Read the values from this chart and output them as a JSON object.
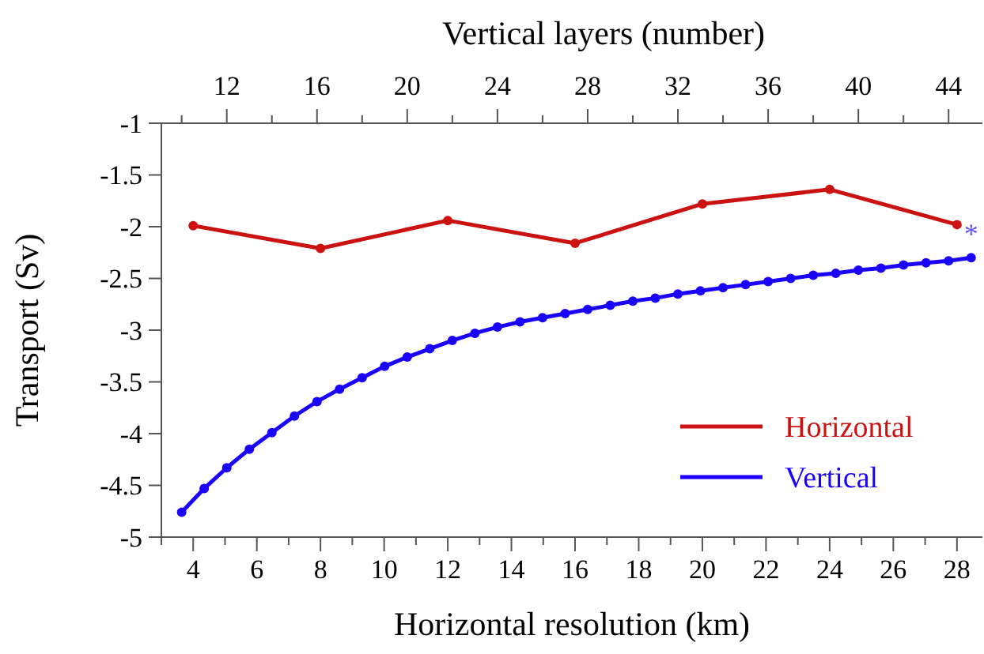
{
  "chart_data": {
    "type": "line",
    "xlabel": "Horizontal resolution (km)",
    "x2label": "Vertical layers (number)",
    "ylabel": "Transport (Sv)",
    "xlim": [
      3,
      28.8
    ],
    "xticks": [
      4,
      6,
      8,
      10,
      12,
      14,
      16,
      18,
      20,
      22,
      24,
      26,
      28
    ],
    "x2lim": [
      9.1,
      45.5
    ],
    "x2ticks": [
      12,
      16,
      20,
      24,
      28,
      32,
      36,
      40,
      44
    ],
    "ylim": [
      -5,
      -1
    ],
    "yticks": [
      -5,
      -4.5,
      -4,
      -3.5,
      -3,
      -2.5,
      -2,
      -1.5,
      -1
    ],
    "grid": false,
    "legend": "bottom right",
    "marker": "circle",
    "line_style": "solid",
    "series": [
      {
        "name": "Horizontal",
        "color": "#cc1111",
        "x": [
          4,
          8,
          12,
          16,
          20,
          24,
          28
        ],
        "values": [
          -1.99,
          -2.21,
          -1.94,
          -2.16,
          -1.78,
          -1.64,
          -1.98
        ]
      },
      {
        "name": "Vertical",
        "color": "#1a00ff",
        "axis": "x2",
        "x": [
          10,
          11,
          12,
          13,
          14,
          15,
          16,
          17,
          18,
          19,
          20,
          21,
          22,
          23,
          24,
          25,
          26,
          27,
          28,
          29,
          30,
          31,
          32,
          33,
          34,
          35,
          36,
          37,
          38,
          39,
          40,
          41,
          42,
          43,
          44,
          45
        ],
        "values": [
          -4.76,
          -4.53,
          -4.33,
          -4.15,
          -3.99,
          -3.83,
          -3.69,
          -3.57,
          -3.46,
          -3.35,
          -3.26,
          -3.18,
          -3.1,
          -3.03,
          -2.97,
          -2.92,
          -2.88,
          -2.84,
          -2.8,
          -2.76,
          -2.72,
          -2.69,
          -2.65,
          -2.62,
          -2.59,
          -2.56,
          -2.53,
          -2.5,
          -2.47,
          -2.45,
          -2.42,
          -2.4,
          -2.37,
          -2.35,
          -2.33,
          -2.3
        ]
      }
    ],
    "annotations": [
      "*"
    ]
  }
}
